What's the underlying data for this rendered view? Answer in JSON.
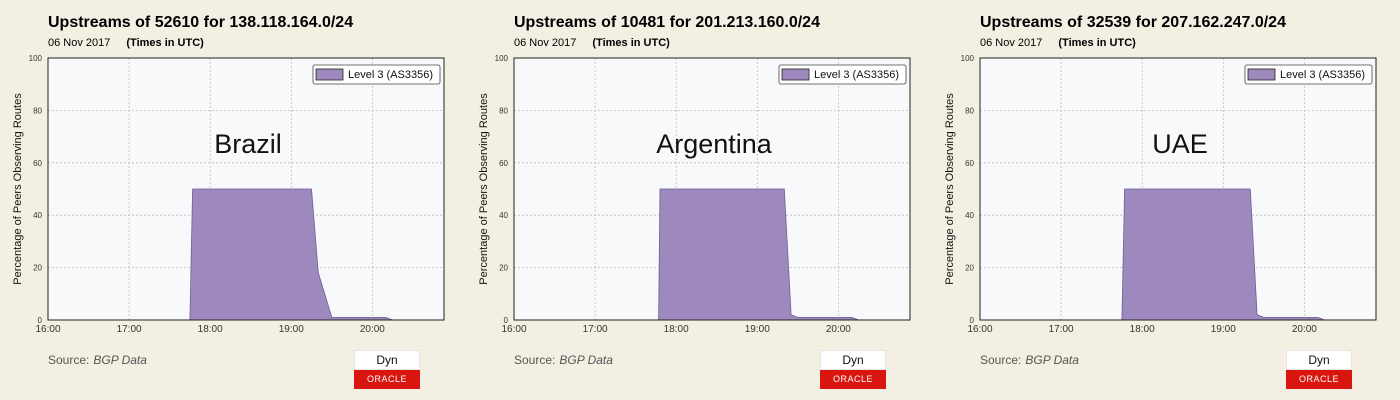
{
  "colors": {
    "background": "#f3f0e3",
    "plot_background": "#f7f9fb",
    "series_fill": "#9d89bd",
    "series_stroke": "#6f5f93",
    "grid": "#bdbdbd",
    "oracle_red": "#d9150f"
  },
  "panels": [
    {
      "title": "Upstreams of 52610 for 138.118.164.0/24",
      "date": "06 Nov 2017",
      "timezone_note": "(Times in UTC)",
      "annotation": "Brazil",
      "source_label": "Source:",
      "source_value": "BGP Data",
      "logo_top": "Dyn",
      "logo_bottom": "ORACLE"
    },
    {
      "title": "Upstreams of 10481 for 201.213.160.0/24",
      "date": "06 Nov 2017",
      "timezone_note": "(Times in UTC)",
      "annotation": "Argentina",
      "source_label": "Source:",
      "source_value": "BGP Data",
      "logo_top": "Dyn",
      "logo_bottom": "ORACLE"
    },
    {
      "title": "Upstreams of 32539 for 207.162.247.0/24",
      "date": "06 Nov 2017",
      "timezone_note": "(Times in UTC)",
      "annotation": "UAE",
      "source_label": "Source:",
      "source_value": "BGP Data",
      "logo_top": "Dyn",
      "logo_bottom": "ORACLE"
    }
  ],
  "chart_data": [
    {
      "type": "area",
      "title": "Upstreams of 52610 for 138.118.164.0/24",
      "ylabel": "Percentage of Peers Observing Routes",
      "xlabel": "",
      "xlim": [
        16,
        16.9
      ],
      "ylim": [
        0,
        100
      ],
      "x_ticks": [
        "16:00",
        "17:00",
        "18:00",
        "19:00",
        "20:00"
      ],
      "y_ticks": [
        "0",
        "20",
        "40",
        "60",
        "80",
        "100"
      ],
      "grid": true,
      "legend": "top-right",
      "series": [
        {
          "name": "Level 3 (AS3356)",
          "x": [
            "16:00",
            "17:45",
            "17:47",
            "19:15",
            "19:20",
            "19:30",
            "19:40",
            "20:10",
            "20:15",
            "20:53"
          ],
          "y": [
            0,
            0,
            50,
            50,
            18,
            1,
            1,
            1,
            0,
            0
          ]
        }
      ]
    },
    {
      "type": "area",
      "title": "Upstreams of 10481 for 201.213.160.0/24",
      "ylabel": "Percentage of Peers Observing Routes",
      "xlabel": "",
      "ylim": [
        0,
        100
      ],
      "x_ticks": [
        "16:00",
        "17:00",
        "18:00",
        "19:00",
        "20:00"
      ],
      "y_ticks": [
        "0",
        "20",
        "40",
        "60",
        "80",
        "100"
      ],
      "grid": true,
      "legend": "top-right",
      "series": [
        {
          "name": "Level 3 (AS3356)",
          "x": [
            "16:00",
            "17:47",
            "17:48",
            "19:20",
            "19:25",
            "19:30",
            "20:10",
            "20:15",
            "20:53"
          ],
          "y": [
            0,
            0,
            50,
            50,
            2,
            1,
            1,
            0,
            0
          ]
        }
      ]
    },
    {
      "type": "area",
      "title": "Upstreams of 32539 for 207.162.247.0/24",
      "ylabel": "Percentage of Peers Observing Routes",
      "xlabel": "",
      "ylim": [
        0,
        100
      ],
      "x_ticks": [
        "16:00",
        "17:00",
        "18:00",
        "19:00",
        "20:00"
      ],
      "y_ticks": [
        "0",
        "20",
        "40",
        "60",
        "80",
        "100"
      ],
      "grid": true,
      "legend": "top-right",
      "series": [
        {
          "name": "Level 3 (AS3356)",
          "x": [
            "16:00",
            "17:45",
            "17:47",
            "19:20",
            "19:25",
            "19:30",
            "20:10",
            "20:15",
            "20:53"
          ],
          "y": [
            0,
            0,
            50,
            50,
            2,
            1,
            1,
            0,
            0
          ]
        }
      ]
    }
  ]
}
